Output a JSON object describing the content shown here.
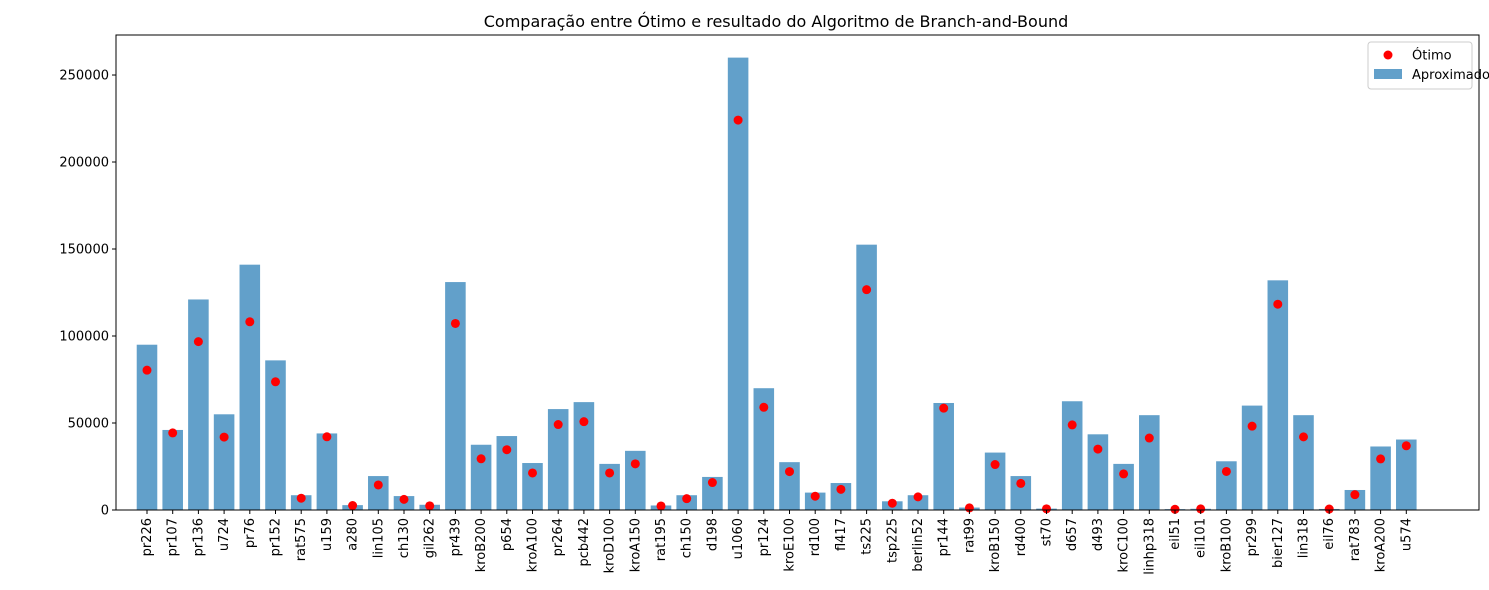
{
  "chart_data": {
    "type": "bar",
    "title": "Comparação entre Ótimo e resultado do Algoritmo de Branch-and-Bound",
    "xlabel": "",
    "ylabel": "",
    "ylim": [
      0,
      273000
    ],
    "yticks": [
      0,
      50000,
      100000,
      150000,
      200000,
      250000
    ],
    "grid": false,
    "legend_position": "top-right",
    "categories": [
      "pr226",
      "pr107",
      "pr136",
      "u724",
      "pr76",
      "pr152",
      "rat575",
      "u159",
      "a280",
      "lin105",
      "ch130",
      "gil262",
      "pr439",
      "kroB200",
      "p654",
      "kroA100",
      "pr264",
      "pcb442",
      "kroD100",
      "kroA150",
      "rat195",
      "ch150",
      "d198",
      "u1060",
      "pr124",
      "kroE100",
      "rd100",
      "fl417",
      "ts225",
      "tsp225",
      "berlin52",
      "pr144",
      "rat99",
      "kroB150",
      "rd400",
      "st70",
      "d657",
      "d493",
      "kroC100",
      "linhp318",
      "eil51",
      "eil101",
      "kroB100",
      "pr299",
      "bier127",
      "lin318",
      "eil76",
      "rat783",
      "kroA200",
      "u574"
    ],
    "series": [
      {
        "name": "Aproximado",
        "kind": "bar",
        "color": "#1f77b4",
        "values": [
          95000,
          46000,
          121000,
          55000,
          141000,
          86000,
          8500,
          44000,
          2800,
          19500,
          8000,
          3000,
          131000,
          37500,
          42500,
          27000,
          58000,
          62000,
          26500,
          34000,
          2600,
          8500,
          19000,
          260000,
          70000,
          27500,
          10000,
          15500,
          152500,
          5000,
          8500,
          61500,
          1400,
          33000,
          19500,
          800,
          62500,
          43500,
          26500,
          54500,
          500,
          700,
          28000,
          60000,
          132000,
          54500,
          600,
          11500,
          36500,
          40500
        ]
      },
      {
        "name": "Ótimo",
        "kind": "scatter",
        "color": "#ff0000",
        "values": [
          80369,
          44303,
          96772,
          41910,
          108159,
          73682,
          6773,
          42080,
          2579,
          14379,
          6110,
          2378,
          107217,
          29437,
          34643,
          21282,
          49135,
          50778,
          21294,
          26524,
          2323,
          6528,
          15780,
          224094,
          59030,
          22068,
          7910,
          11861,
          126643,
          3916,
          7542,
          58537,
          1211,
          26130,
          15281,
          675,
          48912,
          35002,
          20749,
          41345,
          426,
          629,
          22141,
          48191,
          118282,
          42029,
          538,
          8806,
          29368,
          36905
        ]
      }
    ]
  }
}
